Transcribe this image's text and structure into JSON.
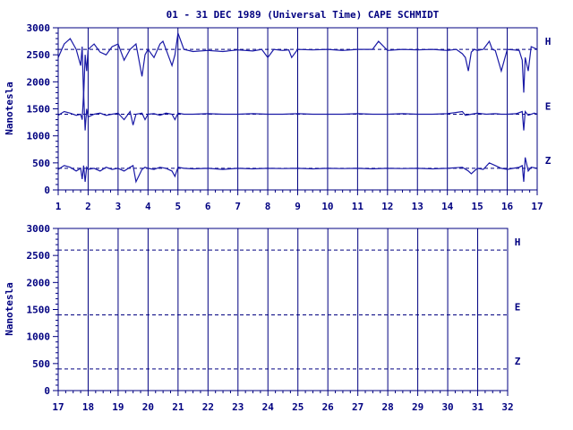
{
  "title": "01 - 31 DEC 1989 (Universal Time) CAPE SCHMIDT",
  "colors": {
    "axis": "#000080",
    "trace": "#1a1aa6",
    "background": "#ffffff"
  },
  "chart_data": [
    {
      "type": "line",
      "ylabel": "Nanotesla",
      "ylim": [
        0,
        3000
      ],
      "yticks": [
        "0",
        "500",
        "1000",
        "1500",
        "2000",
        "2500",
        "3000"
      ],
      "xlim": [
        1,
        17
      ],
      "xticks": [
        "1",
        "2",
        "3",
        "4",
        "5",
        "6",
        "7",
        "8",
        "9",
        "10",
        "11",
        "12",
        "13",
        "14",
        "15",
        "16",
        "17"
      ],
      "baselines": [
        {
          "name": "H",
          "value": 2600
        },
        {
          "name": "E",
          "value": 1400
        },
        {
          "name": "Z",
          "value": 400
        }
      ],
      "series": [
        {
          "name": "H",
          "x": [
            1.0,
            1.2,
            1.4,
            1.6,
            1.75,
            1.8,
            1.85,
            1.9,
            1.95,
            2.0,
            2.2,
            2.4,
            2.6,
            2.8,
            3.0,
            3.2,
            3.4,
            3.5,
            3.6,
            3.8,
            3.9,
            4.0,
            4.2,
            4.4,
            4.5,
            4.6,
            4.8,
            4.9,
            5.0,
            5.2,
            5.5,
            6.0,
            6.5,
            7.0,
            7.5,
            7.8,
            8.0,
            8.2,
            8.5,
            8.7,
            8.8,
            9.0,
            9.5,
            10.0,
            10.5,
            11.0,
            11.5,
            11.7,
            12.0,
            12.5,
            13.0,
            13.5,
            14.0,
            14.3,
            14.5,
            14.6,
            14.7,
            14.8,
            14.9,
            15.0,
            15.2,
            15.4,
            15.5,
            15.6,
            15.8,
            16.0,
            16.2,
            16.4,
            16.5,
            16.55,
            16.6,
            16.7,
            16.8,
            17.0
          ],
          "y": [
            2450,
            2700,
            2800,
            2600,
            2300,
            2650,
            1700,
            2500,
            2200,
            2600,
            2700,
            2550,
            2500,
            2650,
            2700,
            2400,
            2600,
            2650,
            2700,
            2100,
            2500,
            2600,
            2450,
            2700,
            2750,
            2600,
            2300,
            2500,
            2900,
            2600,
            2560,
            2580,
            2560,
            2590,
            2570,
            2600,
            2450,
            2600,
            2580,
            2590,
            2450,
            2600,
            2590,
            2600,
            2580,
            2600,
            2600,
            2750,
            2580,
            2600,
            2590,
            2600,
            2580,
            2600,
            2520,
            2450,
            2200,
            2550,
            2600,
            2580,
            2600,
            2750,
            2600,
            2580,
            2200,
            2600,
            2590,
            2580,
            2400,
            1800,
            2450,
            2200,
            2650,
            2600
          ]
        },
        {
          "name": "E",
          "x": [
            1.0,
            1.2,
            1.4,
            1.6,
            1.75,
            1.8,
            1.85,
            1.9,
            1.95,
            2.0,
            2.2,
            2.4,
            2.6,
            2.8,
            3.0,
            3.2,
            3.4,
            3.5,
            3.6,
            3.8,
            3.9,
            4.0,
            4.2,
            4.4,
            4.6,
            4.8,
            4.9,
            5.0,
            5.2,
            5.5,
            6.0,
            6.5,
            7.0,
            7.5,
            8.0,
            8.5,
            9.0,
            9.5,
            10.0,
            10.5,
            11.0,
            11.5,
            12.0,
            12.5,
            13.0,
            13.5,
            14.0,
            14.5,
            14.6,
            14.8,
            15.0,
            15.3,
            15.6,
            15.8,
            16.0,
            16.3,
            16.5,
            16.55,
            16.6,
            16.7,
            16.9,
            17.0
          ],
          "y": [
            1380,
            1450,
            1420,
            1380,
            1400,
            1300,
            1800,
            1100,
            1500,
            1350,
            1400,
            1420,
            1380,
            1400,
            1420,
            1300,
            1450,
            1200,
            1400,
            1420,
            1300,
            1400,
            1410,
            1380,
            1420,
            1400,
            1300,
            1420,
            1400,
            1400,
            1410,
            1400,
            1400,
            1410,
            1400,
            1400,
            1410,
            1400,
            1400,
            1400,
            1410,
            1400,
            1400,
            1410,
            1400,
            1400,
            1410,
            1450,
            1380,
            1400,
            1420,
            1400,
            1410,
            1400,
            1400,
            1410,
            1450,
            1100,
            1450,
            1380,
            1420,
            1400
          ]
        },
        {
          "name": "Z",
          "x": [
            1.0,
            1.2,
            1.4,
            1.6,
            1.75,
            1.8,
            1.85,
            1.9,
            1.95,
            2.0,
            2.2,
            2.4,
            2.6,
            2.8,
            3.0,
            3.2,
            3.4,
            3.5,
            3.6,
            3.8,
            3.9,
            4.0,
            4.2,
            4.4,
            4.6,
            4.8,
            4.9,
            5.0,
            5.2,
            5.5,
            6.0,
            6.5,
            7.0,
            7.5,
            8.0,
            8.5,
            9.0,
            9.5,
            10.0,
            10.5,
            11.0,
            11.5,
            12.0,
            12.5,
            13.0,
            13.5,
            14.0,
            14.5,
            14.7,
            14.8,
            15.0,
            15.2,
            15.4,
            15.6,
            15.8,
            16.0,
            16.2,
            16.4,
            16.5,
            16.55,
            16.6,
            16.7,
            16.8,
            17.0
          ],
          "y": [
            380,
            450,
            420,
            350,
            400,
            200,
            450,
            150,
            420,
            380,
            400,
            350,
            420,
            380,
            400,
            350,
            420,
            450,
            150,
            380,
            420,
            400,
            380,
            420,
            400,
            350,
            250,
            420,
            400,
            390,
            400,
            380,
            400,
            390,
            400,
            395,
            400,
            390,
            400,
            395,
            400,
            390,
            400,
            395,
            400,
            390,
            400,
            420,
            350,
            300,
            400,
            380,
            500,
            450,
            400,
            380,
            400,
            420,
            450,
            150,
            600,
            350,
            420,
            400
          ]
        }
      ]
    },
    {
      "type": "line",
      "ylabel": "Nanotesla",
      "ylim": [
        0,
        3000
      ],
      "yticks": [
        "0",
        "500",
        "1000",
        "1500",
        "2000",
        "2500",
        "3000"
      ],
      "xlim": [
        17,
        32
      ],
      "xticks": [
        "17",
        "18",
        "19",
        "20",
        "21",
        "22",
        "23",
        "24",
        "25",
        "26",
        "27",
        "28",
        "29",
        "30",
        "31",
        "32"
      ],
      "baselines": [
        {
          "name": "H",
          "value": 2600
        },
        {
          "name": "E",
          "value": 1400
        },
        {
          "name": "Z",
          "value": 400
        }
      ],
      "series": []
    }
  ]
}
